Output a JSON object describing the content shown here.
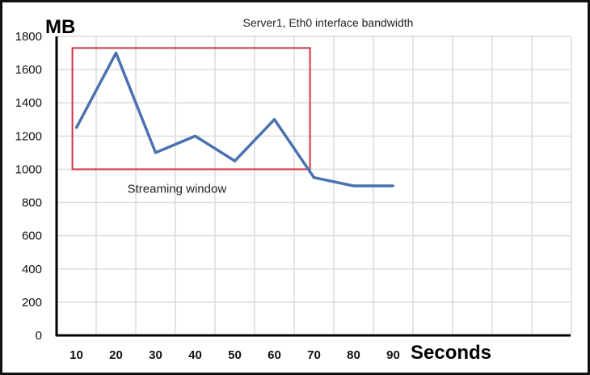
{
  "chart_data": {
    "type": "line",
    "title": "Server1, Eth0 interface bandwidth",
    "xlabel": "Seconds",
    "ylabel": "MB",
    "x": [
      10,
      20,
      30,
      40,
      50,
      60,
      70,
      80,
      90
    ],
    "x_tick_labels": [
      "10",
      "20",
      "30",
      "40",
      "50",
      "60",
      "70",
      "80",
      "90"
    ],
    "y_tick_labels": [
      "0",
      "200",
      "400",
      "600",
      "800",
      "1000",
      "1200",
      "1400",
      "1600",
      "1800"
    ],
    "ylim": [
      0,
      1800
    ],
    "grid": true,
    "series": [
      {
        "values": [
          1250,
          1700,
          1100,
          1200,
          1050,
          1300,
          950,
          900,
          900
        ],
        "color": "#4a72b0"
      }
    ],
    "annotations": [
      {
        "type": "rect",
        "label": "Streaming window",
        "x_range": [
          9,
          69
        ],
        "y_range": [
          1000,
          1730
        ],
        "color": "#d0353c"
      }
    ]
  }
}
